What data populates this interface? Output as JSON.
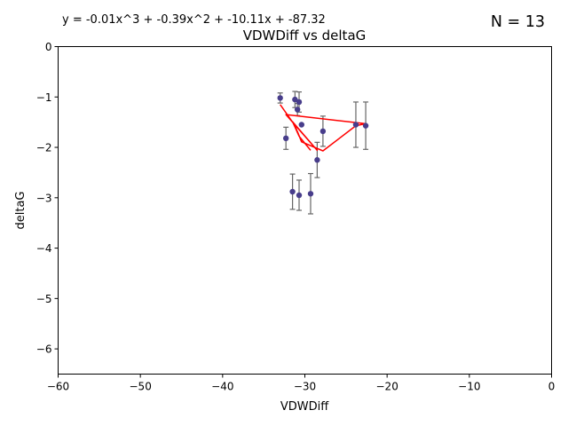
{
  "chart_data": {
    "type": "scatter",
    "title": "VDWDiff vs deltaG",
    "xlabel": "VDWDiff",
    "ylabel": "deltaG",
    "equation": "y = -0.01x^3 + -0.39x^2 + -10.11x + -87.32",
    "count_label": "N = 13",
    "xlim": [
      -60,
      0
    ],
    "ylim": [
      -6.5,
      0
    ],
    "xticks": [
      -60,
      -50,
      -40,
      -30,
      -20,
      -10,
      0
    ],
    "xtick_labels": [
      "−60",
      "−50",
      "−40",
      "−30",
      "−20",
      "−10",
      "0"
    ],
    "yticks": [
      0,
      -1,
      -2,
      -3,
      -4,
      -5,
      -6
    ],
    "ytick_labels": [
      "0",
      "−1",
      "−2",
      "−3",
      "−4",
      "−5",
      "−6"
    ],
    "grid": false,
    "colors": {
      "points": "#483d8b",
      "errorbars": "#666666",
      "fit": "#ff0000"
    },
    "points": [
      {
        "x": -33.0,
        "y": -1.02,
        "err": 0.1
      },
      {
        "x": -31.2,
        "y": -1.05,
        "err": 0.16
      },
      {
        "x": -30.7,
        "y": -1.1,
        "err": 0.2
      },
      {
        "x": -30.9,
        "y": -1.25,
        "err": 0.12
      },
      {
        "x": -30.4,
        "y": -1.55,
        "err": 0.0
      },
      {
        "x": -27.8,
        "y": -1.68,
        "err": 0.3
      },
      {
        "x": -23.8,
        "y": -1.55,
        "err": 0.45
      },
      {
        "x": -22.6,
        "y": -1.57,
        "err": 0.47
      },
      {
        "x": -32.3,
        "y": -1.82,
        "err": 0.22
      },
      {
        "x": -28.5,
        "y": -2.25,
        "err": 0.35
      },
      {
        "x": -31.5,
        "y": -2.88,
        "err": 0.35
      },
      {
        "x": -30.7,
        "y": -2.95,
        "err": 0.3
      },
      {
        "x": -29.3,
        "y": -2.92,
        "err": 0.4
      }
    ],
    "fit_line": {
      "x": [
        -33.0,
        -31.2,
        -30.7,
        -30.9,
        -30.4,
        -27.8,
        -23.8,
        -22.6,
        -32.3,
        -28.5,
        -31.5,
        -30.7,
        -29.3
      ],
      "y": [
        -1.15,
        -1.57,
        -1.78,
        -1.69,
        -1.89,
        -2.07,
        -1.57,
        -1.53,
        -1.35,
        -2.06,
        -1.49,
        -1.78,
        -2.06
      ]
    }
  }
}
